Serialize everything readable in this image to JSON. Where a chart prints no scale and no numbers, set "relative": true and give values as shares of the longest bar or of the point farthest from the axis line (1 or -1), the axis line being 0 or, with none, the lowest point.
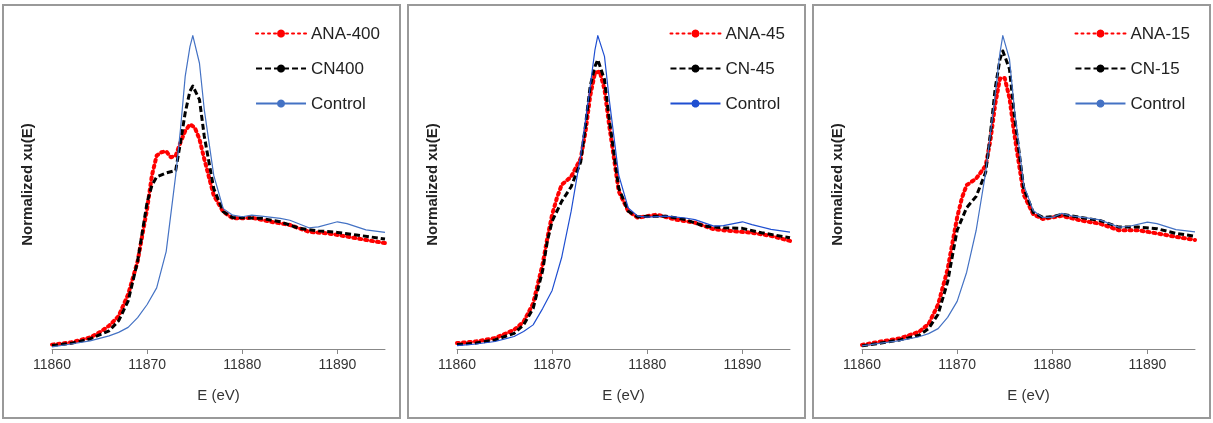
{
  "chart_data": [
    {
      "type": "line",
      "relative": true,
      "xlabel": "E (eV)",
      "ylabel": "Normalized xu(E)",
      "xlim": [
        11860,
        11895
      ],
      "xticks": [
        11860,
        11870,
        11880,
        11890
      ],
      "legend": "top right",
      "grid": false,
      "marker": "none",
      "series": [
        {
          "name": "ANA-400",
          "color": "#ff0000",
          "line_style": "dotted",
          "x": [
            11860,
            11862,
            11864,
            11865,
            11866,
            11867,
            11868,
            11869,
            11869.5,
            11870,
            11870.5,
            11871,
            11871.5,
            11872,
            11872.5,
            11873,
            11873.5,
            11874,
            11874.5,
            11875,
            11875.5,
            11876,
            11877,
            11878,
            11879,
            11880,
            11881,
            11883,
            11885,
            11887,
            11889,
            11891,
            11893,
            11895
          ],
          "values": [
            0.014,
            0.021,
            0.037,
            0.053,
            0.074,
            0.105,
            0.174,
            0.28,
            0.364,
            0.448,
            0.554,
            0.617,
            0.628,
            0.631,
            0.612,
            0.617,
            0.659,
            0.696,
            0.717,
            0.707,
            0.67,
            0.607,
            0.49,
            0.438,
            0.417,
            0.417,
            0.419,
            0.406,
            0.396,
            0.374,
            0.369,
            0.359,
            0.348,
            0.338
          ]
        },
        {
          "name": "CN400",
          "color": "#000000",
          "line_style": "dashed",
          "x": [
            11860,
            11862,
            11864,
            11866,
            11867,
            11868,
            11869,
            11869.5,
            11870,
            11870.5,
            11871,
            11872,
            11873,
            11873.5,
            11874,
            11874.5,
            11874.8,
            11875.5,
            11876,
            11877,
            11878,
            11879,
            11880,
            11882,
            11884,
            11886,
            11888,
            11890,
            11892,
            11895
          ],
          "values": [
            0.011,
            0.018,
            0.032,
            0.058,
            0.09,
            0.153,
            0.28,
            0.374,
            0.469,
            0.522,
            0.549,
            0.562,
            0.57,
            0.659,
            0.754,
            0.823,
            0.839,
            0.796,
            0.68,
            0.512,
            0.438,
            0.419,
            0.419,
            0.417,
            0.406,
            0.385,
            0.377,
            0.372,
            0.364,
            0.351
          ]
        },
        {
          "name": "Control",
          "color": "#4472c4",
          "line_style": "solid",
          "x": [
            11860,
            11862,
            11864,
            11866,
            11867,
            11868,
            11869,
            11870,
            11871,
            11872,
            11873,
            11873.5,
            11874,
            11874.5,
            11874.8,
            11875.5,
            11876,
            11877,
            11878,
            11879,
            11880,
            11881,
            11882,
            11884,
            11885,
            11887,
            11888,
            11890,
            11891,
            11893,
            11895
          ],
          "values": [
            0.007,
            0.016,
            0.026,
            0.042,
            0.053,
            0.069,
            0.1,
            0.142,
            0.195,
            0.311,
            0.554,
            0.7,
            0.87,
            0.965,
            1,
            0.912,
            0.765,
            0.554,
            0.448,
            0.427,
            0.422,
            0.427,
            0.424,
            0.417,
            0.411,
            0.387,
            0.39,
            0.406,
            0.4,
            0.38,
            0.372
          ]
        }
      ]
    },
    {
      "type": "line",
      "relative": true,
      "xlabel": "E (eV)",
      "ylabel": "Normalized xu(E)",
      "xlim": [
        11860,
        11895
      ],
      "xticks": [
        11860,
        11870,
        11880,
        11890
      ],
      "legend": "top right",
      "grid": false,
      "marker": "none",
      "series": [
        {
          "name": "ANA-45",
          "color": "#ff0000",
          "line_style": "dotted",
          "x": [
            11860,
            11862,
            11864,
            11866,
            11867,
            11868,
            11869,
            11869.5,
            11870,
            11870.5,
            11871,
            11872,
            11873,
            11873.5,
            11874,
            11874.5,
            11875,
            11875.5,
            11876,
            11877,
            11878,
            11879,
            11880,
            11881,
            11883,
            11885,
            11887,
            11889,
            11891,
            11893,
            11895
          ],
          "values": [
            0.019,
            0.024,
            0.035,
            0.061,
            0.087,
            0.145,
            0.271,
            0.355,
            0.429,
            0.482,
            0.524,
            0.55,
            0.608,
            0.692,
            0.808,
            0.881,
            0.886,
            0.829,
            0.713,
            0.503,
            0.44,
            0.419,
            0.424,
            0.429,
            0.413,
            0.403,
            0.382,
            0.376,
            0.371,
            0.361,
            0.345
          ]
        },
        {
          "name": "CN-45",
          "color": "#000000",
          "line_style": "dashed",
          "x": [
            11860,
            11862,
            11864,
            11866,
            11867,
            11868,
            11869,
            11869.5,
            11870,
            11871,
            11872,
            11873,
            11873.5,
            11874,
            11874.5,
            11874.8,
            11875.5,
            11876,
            11877,
            11878,
            11879,
            11880,
            11882,
            11884,
            11886,
            11888,
            11890,
            11892,
            11895
          ],
          "values": [
            0.014,
            0.019,
            0.029,
            0.05,
            0.077,
            0.129,
            0.25,
            0.345,
            0.408,
            0.471,
            0.518,
            0.597,
            0.713,
            0.839,
            0.902,
            0.923,
            0.86,
            0.734,
            0.513,
            0.44,
            0.421,
            0.424,
            0.424,
            0.413,
            0.392,
            0.387,
            0.385,
            0.371,
            0.355
          ]
        },
        {
          "name": "Control",
          "color": "#1f4fd1",
          "line_style": "solid",
          "x": [
            11860,
            11862,
            11864,
            11866,
            11867,
            11868,
            11869,
            11870,
            11871,
            11872,
            11873,
            11874,
            11874.5,
            11874.8,
            11875.5,
            11876,
            11877,
            11878,
            11879,
            11880,
            11882,
            11884,
            11885,
            11887,
            11888,
            11890,
            11891,
            11893,
            11895
          ],
          "values": [
            0.011,
            0.016,
            0.024,
            0.04,
            0.056,
            0.077,
            0.129,
            0.187,
            0.292,
            0.44,
            0.618,
            0.839,
            0.955,
            1,
            0.934,
            0.797,
            0.555,
            0.45,
            0.424,
            0.421,
            0.424,
            0.418,
            0.413,
            0.392,
            0.394,
            0.406,
            0.397,
            0.382,
            0.373
          ]
        }
      ]
    },
    {
      "type": "line",
      "relative": true,
      "xlabel": "E (eV)",
      "ylabel": "Normalized xu(E)",
      "xlim": [
        11860,
        11895
      ],
      "xticks": [
        11860,
        11870,
        11880,
        11890
      ],
      "legend": "top right",
      "grid": false,
      "marker": "none",
      "series": [
        {
          "name": "ANA-15",
          "color": "#ff0000",
          "line_style": "dotted",
          "x": [
            11860,
            11862,
            11864,
            11866,
            11867,
            11868,
            11869,
            11869.5,
            11870,
            11870.5,
            11871,
            11872,
            11873,
            11873.5,
            11874,
            11874.5,
            11875,
            11875.5,
            11876,
            11877,
            11878,
            11879,
            11880,
            11881,
            11883,
            11885,
            11887,
            11889,
            11891,
            11893,
            11895
          ],
          "values": [
            0.013,
            0.024,
            0.034,
            0.055,
            0.08,
            0.142,
            0.255,
            0.338,
            0.42,
            0.482,
            0.523,
            0.544,
            0.585,
            0.667,
            0.781,
            0.863,
            0.865,
            0.801,
            0.688,
            0.492,
            0.43,
            0.415,
            0.42,
            0.425,
            0.41,
            0.4,
            0.379,
            0.379,
            0.369,
            0.358,
            0.348
          ]
        },
        {
          "name": "CN-15",
          "color": "#000000",
          "line_style": "dashed",
          "x": [
            11860,
            11862,
            11864,
            11866,
            11867,
            11868,
            11869,
            11869.5,
            11870,
            11871,
            11872,
            11873,
            11873.5,
            11874,
            11874.5,
            11874.8,
            11875.5,
            11876,
            11877,
            11878,
            11879,
            11880,
            11881,
            11883,
            11885,
            11887,
            11889,
            11891,
            11893,
            11895
          ],
          "values": [
            0.01,
            0.019,
            0.029,
            0.044,
            0.065,
            0.111,
            0.214,
            0.297,
            0.379,
            0.451,
            0.487,
            0.564,
            0.688,
            0.832,
            0.925,
            0.951,
            0.894,
            0.75,
            0.513,
            0.436,
            0.42,
            0.422,
            0.43,
            0.42,
            0.41,
            0.389,
            0.389,
            0.384,
            0.369,
            0.36
          ]
        },
        {
          "name": "Control",
          "color": "#4472c4",
          "line_style": "solid",
          "x": [
            11860,
            11862,
            11864,
            11866,
            11867,
            11868,
            11869,
            11870,
            11871,
            11872,
            11873,
            11874,
            11874.5,
            11874.8,
            11875.5,
            11876,
            11877,
            11878,
            11879,
            11880,
            11881,
            11882,
            11884,
            11885,
            11887,
            11888,
            11890,
            11891,
            11893,
            11895
          ],
          "values": [
            0.01,
            0.019,
            0.027,
            0.039,
            0.049,
            0.065,
            0.101,
            0.152,
            0.245,
            0.379,
            0.564,
            0.812,
            0.945,
            1,
            0.925,
            0.77,
            0.523,
            0.441,
            0.42,
            0.42,
            0.433,
            0.425,
            0.417,
            0.412,
            0.389,
            0.391,
            0.405,
            0.4,
            0.381,
            0.374
          ]
        }
      ]
    }
  ]
}
